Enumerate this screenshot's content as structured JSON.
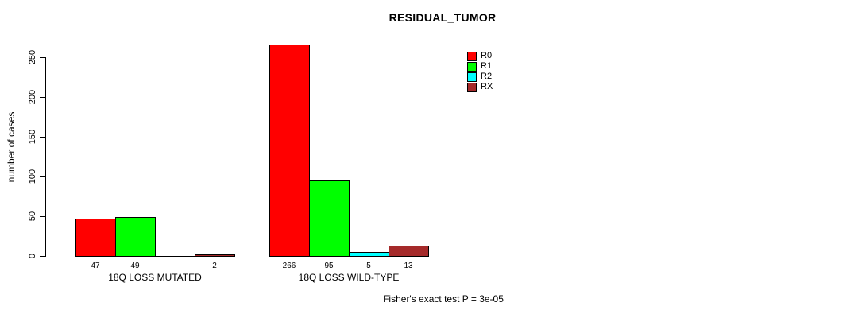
{
  "chart_data": {
    "type": "bar",
    "title": "RESIDUAL_TUMOR",
    "ylabel": "number of cases",
    "ylim": [
      0,
      250
    ],
    "yticks": [
      0,
      50,
      100,
      150,
      200,
      250
    ],
    "categories": [
      "18Q LOSS MUTATED",
      "18Q LOSS WILD-TYPE"
    ],
    "series": [
      {
        "name": "R0",
        "color": "#FF0000",
        "values": [
          47,
          266
        ]
      },
      {
        "name": "R1",
        "color": "#00FF00",
        "values": [
          49,
          95
        ]
      },
      {
        "name": "R2",
        "color": "#00FFFF",
        "values": [
          0,
          5
        ]
      },
      {
        "name": "RX",
        "color": "#A52A2A",
        "values": [
          2,
          13
        ]
      }
    ],
    "bar_border_color": "#000000",
    "show_value_labels": true,
    "hide_zero_value_labels": true,
    "grid": false,
    "legend_position": "top-right",
    "legend_entries": [
      "R0",
      "R1",
      "R2",
      "RX"
    ],
    "annotation": "Fisher's exact test P = 3e-05",
    "background": "#FFFFFF"
  }
}
